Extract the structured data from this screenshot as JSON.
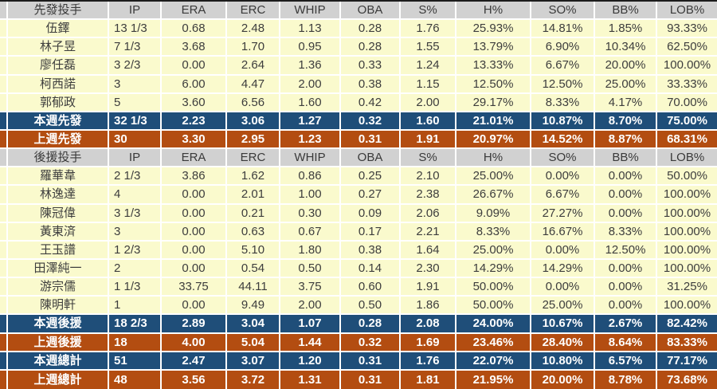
{
  "columns": [
    "IP",
    "ERA",
    "ERC",
    "WHIP",
    "OBA",
    "S%",
    "H%",
    "SO%",
    "BB%",
    "LOB%"
  ],
  "colors": {
    "header_bg": "#d1d1d1",
    "data_row_bg": "#fafacd",
    "this_week_bg": "#1f4e79",
    "last_week_bg": "#b34d11",
    "grid_line": "#ffffff"
  },
  "tables": [
    {
      "header": "先發投手",
      "players": [
        {
          "name": "伍鐸",
          "values": [
            "13 1/3",
            "0.68",
            "2.48",
            "1.13",
            "0.28",
            "1.76",
            "25.93%",
            "14.81%",
            "1.85%",
            "93.33%"
          ]
        },
        {
          "name": "林子昱",
          "values": [
            "7 1/3",
            "3.68",
            "1.70",
            "0.95",
            "0.28",
            "1.55",
            "13.79%",
            "6.90%",
            "10.34%",
            "62.50%"
          ]
        },
        {
          "name": "廖任磊",
          "values": [
            "3 2/3",
            "0.00",
            "2.64",
            "1.36",
            "0.33",
            "1.24",
            "13.33%",
            "6.67%",
            "20.00%",
            "100.00%"
          ]
        },
        {
          "name": "柯西諾",
          "values": [
            "3",
            "6.00",
            "4.47",
            "2.00",
            "0.38",
            "1.15",
            "12.50%",
            "12.50%",
            "25.00%",
            "33.33%"
          ]
        },
        {
          "name": "郭郁政",
          "values": [
            "5",
            "3.60",
            "6.56",
            "1.60",
            "0.42",
            "2.00",
            "29.17%",
            "8.33%",
            "4.17%",
            "70.00%"
          ]
        }
      ],
      "summary": [
        {
          "name": "本週先發",
          "style": "blue",
          "values": [
            "32 1/3",
            "2.23",
            "3.06",
            "1.27",
            "0.32",
            "1.60",
            "21.01%",
            "10.87%",
            "8.70%",
            "75.00%"
          ]
        },
        {
          "name": "上週先發",
          "style": "brown",
          "values": [
            "30",
            "3.30",
            "2.95",
            "1.23",
            "0.31",
            "1.91",
            "20.97%",
            "14.52%",
            "8.87%",
            "68.31%"
          ]
        }
      ]
    },
    {
      "header": "後援投手",
      "players": [
        {
          "name": "羅華韋",
          "values": [
            "2 1/3",
            "3.86",
            "1.62",
            "0.86",
            "0.25",
            "2.10",
            "25.00%",
            "0.00%",
            "0.00%",
            "50.00%"
          ]
        },
        {
          "name": "林逸達",
          "values": [
            "4",
            "0.00",
            "2.01",
            "1.00",
            "0.27",
            "2.38",
            "26.67%",
            "6.67%",
            "0.00%",
            "100.00%"
          ]
        },
        {
          "name": "陳冠偉",
          "values": [
            "3 1/3",
            "0.00",
            "0.21",
            "0.30",
            "0.09",
            "2.06",
            "9.09%",
            "27.27%",
            "0.00%",
            "100.00%"
          ]
        },
        {
          "name": "黃東済",
          "values": [
            "3",
            "0.00",
            "0.63",
            "0.67",
            "0.17",
            "2.21",
            "8.33%",
            "16.67%",
            "8.33%",
            "100.00%"
          ]
        },
        {
          "name": "王玉譜",
          "values": [
            "1 2/3",
            "0.00",
            "5.10",
            "1.80",
            "0.38",
            "1.64",
            "25.00%",
            "0.00%",
            "12.50%",
            "100.00%"
          ]
        },
        {
          "name": "田澤純一",
          "values": [
            "2",
            "0.00",
            "0.54",
            "0.50",
            "0.14",
            "2.30",
            "14.29%",
            "14.29%",
            "0.00%",
            "100.00%"
          ]
        },
        {
          "name": "游宗儒",
          "values": [
            "1 1/3",
            "33.75",
            "44.11",
            "3.75",
            "0.60",
            "1.91",
            "50.00%",
            "0.00%",
            "0.00%",
            "31.25%"
          ]
        },
        {
          "name": "陳明軒",
          "values": [
            "1",
            "0.00",
            "9.49",
            "2.00",
            "0.50",
            "1.86",
            "50.00%",
            "25.00%",
            "0.00%",
            "100.00%"
          ]
        }
      ],
      "summary": [
        {
          "name": "本週後援",
          "style": "blue",
          "values": [
            "18 2/3",
            "2.89",
            "3.04",
            "1.07",
            "0.28",
            "2.08",
            "24.00%",
            "10.67%",
            "2.67%",
            "82.42%"
          ]
        },
        {
          "name": "上週後援",
          "style": "brown",
          "values": [
            "18",
            "4.00",
            "5.04",
            "1.44",
            "0.32",
            "1.69",
            "23.46%",
            "28.40%",
            "8.64%",
            "83.33%"
          ]
        },
        {
          "name": "本週總計",
          "style": "blue",
          "values": [
            "51",
            "2.47",
            "3.07",
            "1.20",
            "0.31",
            "1.76",
            "22.07%",
            "10.80%",
            "6.57%",
            "77.17%"
          ]
        },
        {
          "name": "上週總計",
          "style": "brown",
          "values": [
            "48",
            "3.56",
            "3.72",
            "1.31",
            "0.31",
            "1.81",
            "21.95%",
            "20.00%",
            "8.78%",
            "73.68%"
          ]
        }
      ]
    }
  ]
}
